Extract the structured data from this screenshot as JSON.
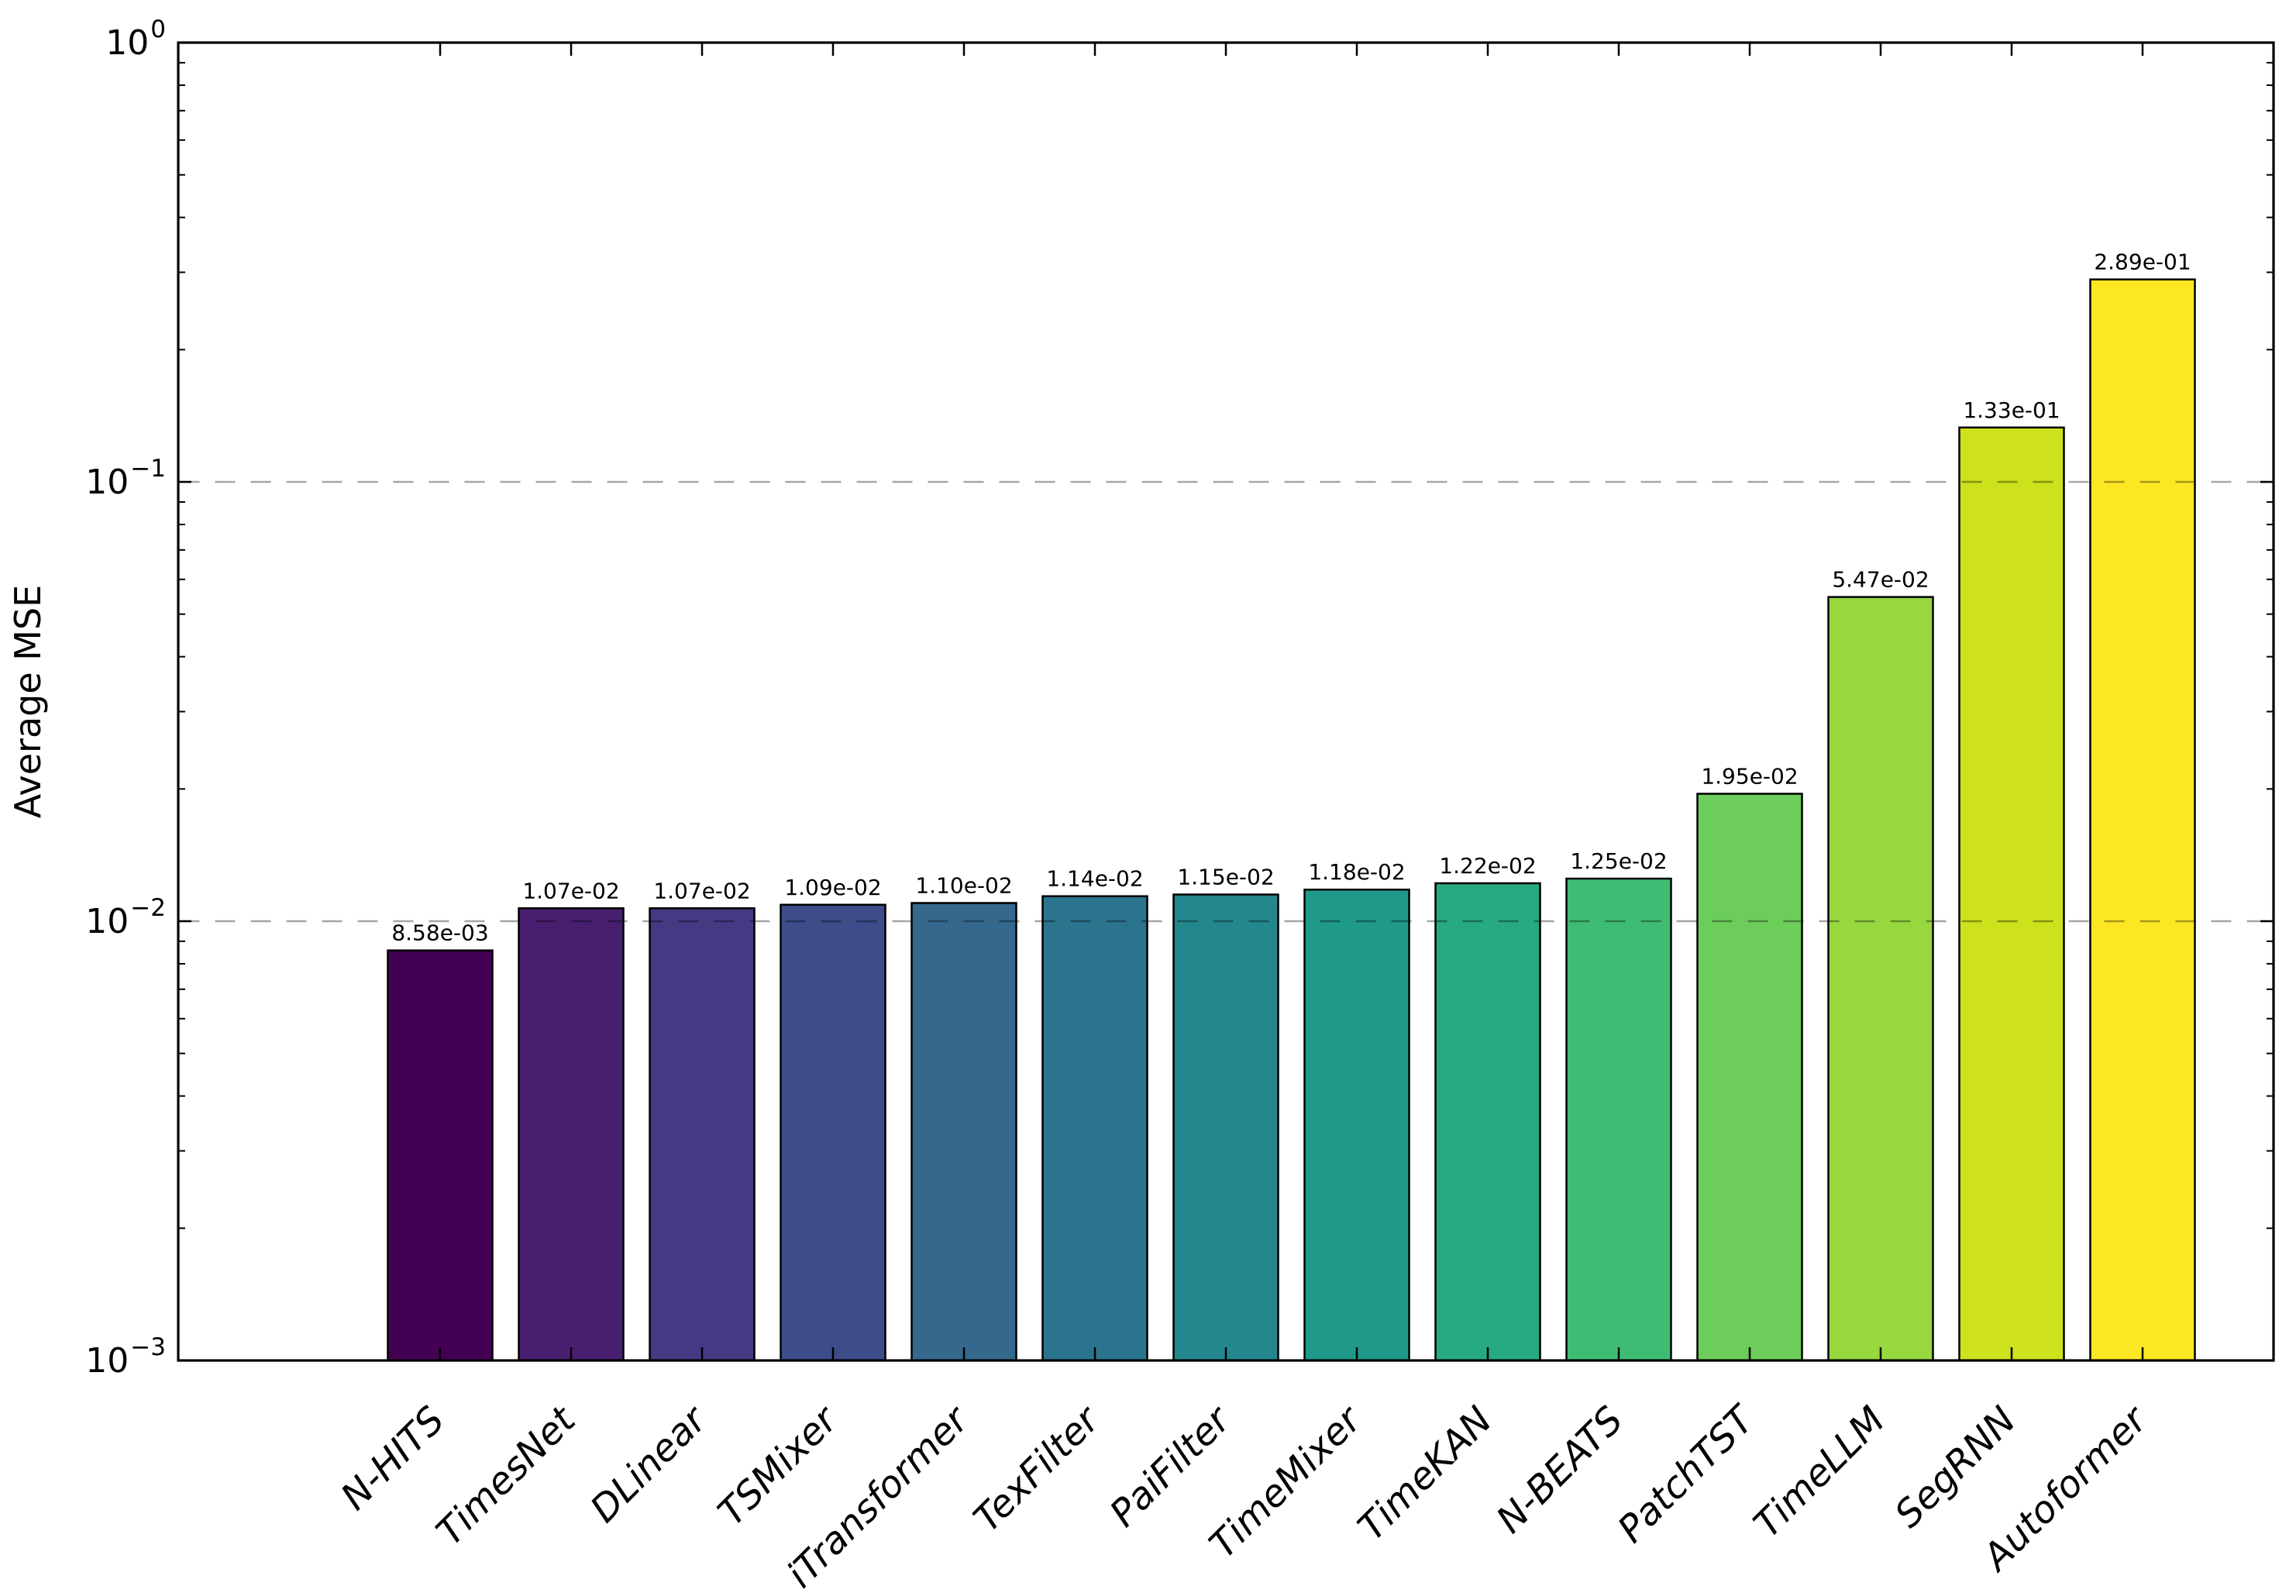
{
  "chart_data": {
    "type": "bar",
    "title": "",
    "xlabel": "",
    "ylabel": "Average MSE",
    "yscale": "log",
    "ylim": [
      0.001,
      1.0
    ],
    "grid": "dashed horizontal major gridlines",
    "grid_values": [
      0.1,
      0.01
    ],
    "legend_position": "none",
    "colormap": "viridis",
    "categories": [
      "N-HITS",
      "TimesNet",
      "DLinear",
      "TSMixer",
      "iTransformer",
      "TexFilter",
      "PaiFilter",
      "TimeMixer",
      "TimeKAN",
      "N-BEATS",
      "PatchTST",
      "TimeLLM",
      "SegRNN",
      "Autoformer"
    ],
    "values": [
      0.00858,
      0.0107,
      0.0107,
      0.0109,
      0.011,
      0.0114,
      0.0115,
      0.0118,
      0.0122,
      0.0125,
      0.0195,
      0.0547,
      0.133,
      0.289
    ],
    "value_labels": [
      "8.58e-03",
      "1.07e-02",
      "1.07e-02",
      "1.09e-02",
      "1.10e-02",
      "1.14e-02",
      "1.15e-02",
      "1.18e-02",
      "1.22e-02",
      "1.25e-02",
      "1.95e-02",
      "5.47e-02",
      "1.33e-01",
      "2.89e-01"
    ],
    "bar_colors": [
      "#440154",
      "#481f70",
      "#443983",
      "#3e4c8a",
      "#35688d",
      "#2b748e",
      "#24878e",
      "#1f998a",
      "#27aa81",
      "#3fbc73",
      "#6ccd5a",
      "#97d83f",
      "#cde11d",
      "#fde725"
    ],
    "bar_edge_color": "#000000",
    "ytick_exponents": [
      0,
      -1,
      -2,
      -3
    ],
    "ytick_base": "10",
    "grid_color_rgba": "rgba(0,0,0,0.35)",
    "axis_color": "#000000"
  }
}
